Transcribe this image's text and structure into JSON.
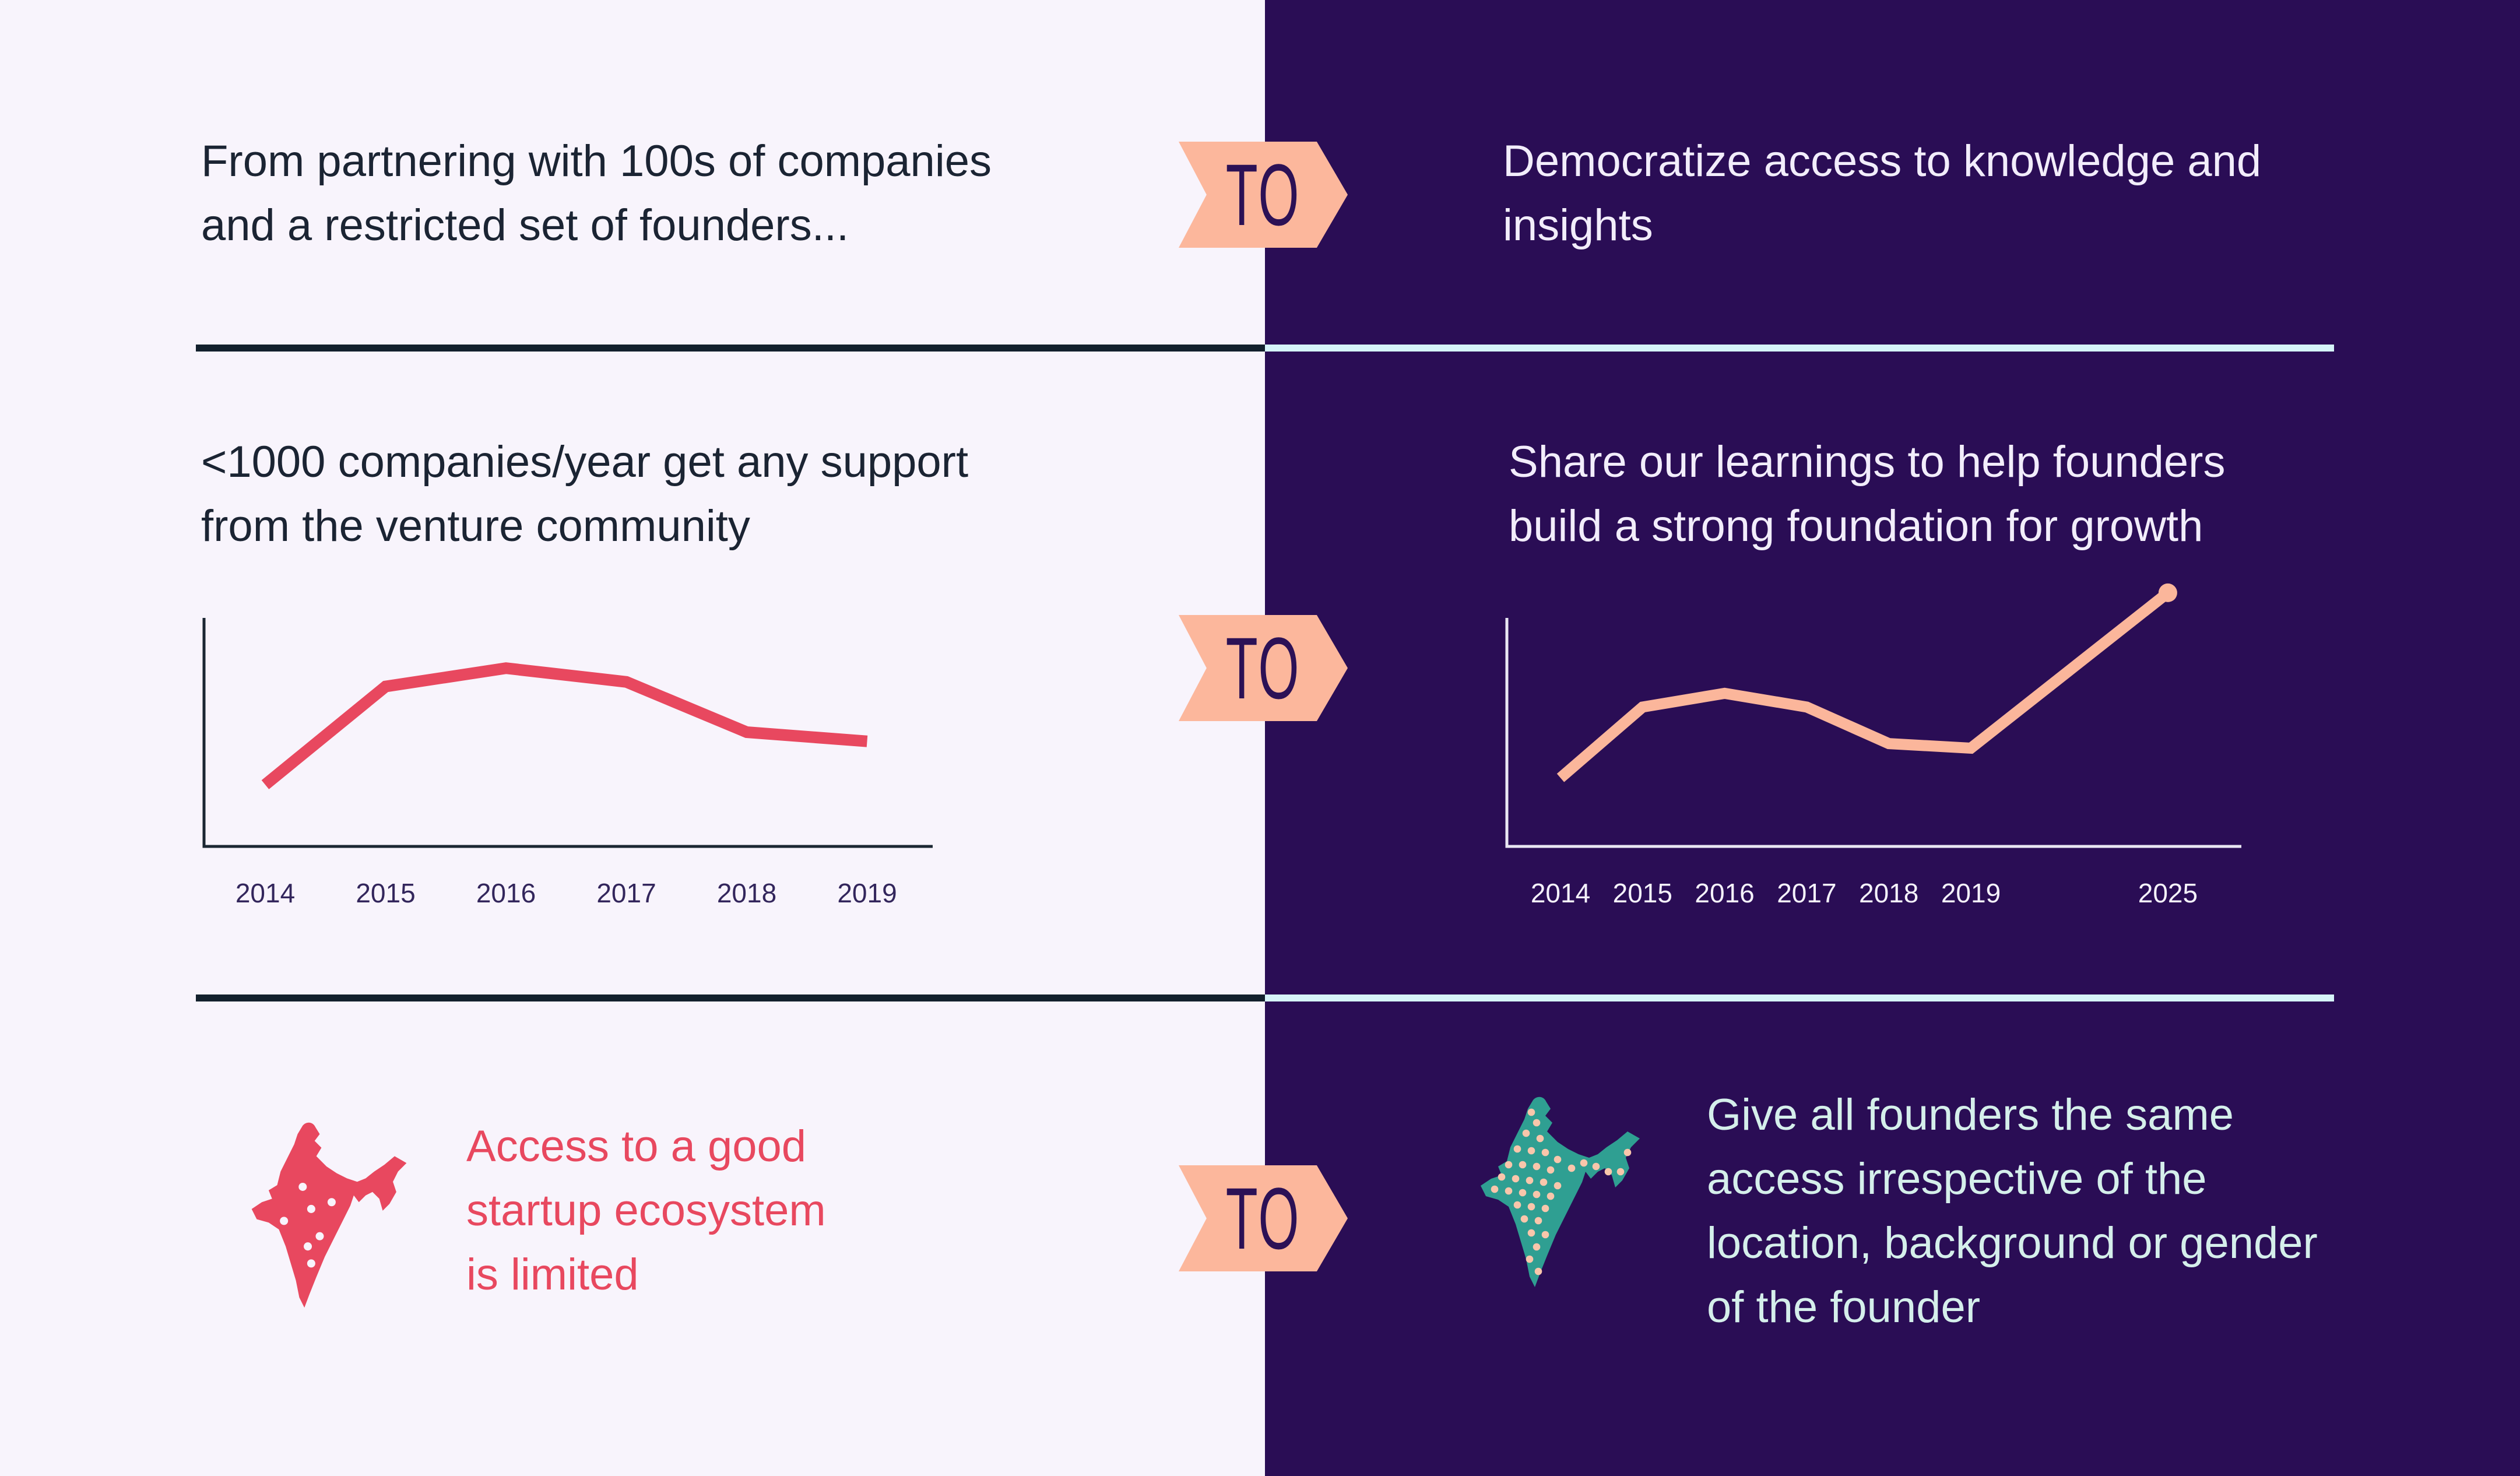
{
  "colors": {
    "left_background": "#f8f4fc",
    "right_background": "#2a0d55",
    "badge_peach": "#fcb79c",
    "badge_text": "#2c1156",
    "crimson": "#e8485f",
    "teal": "#2f9f92",
    "dark_text": "#1b2433",
    "white_text": "#f2edfb",
    "mint_text": "#d5efeb",
    "divider_dark": "#13202d",
    "divider_light": "#d6f4f9"
  },
  "rows": [
    {
      "badge": "TO",
      "left": {
        "text": "From partnering with 100s of companies\nand a restricted set of founders..."
      },
      "right": {
        "text": "Democratize access to knowledge and\ninsights"
      }
    },
    {
      "badge": "TO",
      "left": {
        "title": "<1000 companies/year get any support\nfrom the venture community"
      },
      "right": {
        "title": "Share our learnings to help founders\nbuild a strong foundation for growth"
      }
    },
    {
      "badge": "TO",
      "left": {
        "text": "Access to a good\nstartup ecosystem\nis limited"
      },
      "right": {
        "text": "Give all founders the same\naccess irrespective of the\nlocation, background or gender\nof the founder"
      }
    }
  ],
  "chart_data": [
    {
      "type": "line",
      "title": "<1000 companies/year get any support from the venture community",
      "categories": [
        "2014",
        "2015",
        "2016",
        "2017",
        "2018",
        "2019"
      ],
      "values": [
        27,
        70,
        78,
        72,
        50,
        46
      ],
      "xlabel": "",
      "ylabel": "",
      "ylim": [
        0,
        100
      ],
      "grid": false,
      "legend": "none",
      "line_color": "#e8485f",
      "axis_color": "#1c2733",
      "label_color": "#33265c"
    },
    {
      "type": "line",
      "title": "Share our learnings to help founders build a strong foundation for growth",
      "categories": [
        "2014",
        "2015",
        "2016",
        "2017",
        "2018",
        "2019",
        "2025"
      ],
      "values": [
        30,
        61,
        67,
        61,
        45,
        43,
        111
      ],
      "x_slots": [
        0,
        1,
        2,
        3,
        4,
        5,
        7.4
      ],
      "xlabel": "",
      "ylabel": "",
      "ylim": [
        0,
        100
      ],
      "grid": false,
      "legend": "none",
      "end_dot": true,
      "line_color": "#fbb69b",
      "axis_color": "#e9e7f3",
      "label_color": "#f5f2fc"
    }
  ],
  "maps": {
    "left": {
      "name": "india-map-limited-ecosystem",
      "fill": "#e8485f",
      "dot_color": "#f8f4fc",
      "dot_radius": 2.4,
      "dots": [
        [
          34,
          39
        ],
        [
          51,
          48
        ],
        [
          39,
          52
        ],
        [
          23,
          59
        ],
        [
          44,
          68
        ],
        [
          37,
          74
        ],
        [
          39,
          84
        ]
      ]
    },
    "right": {
      "name": "india-map-same-access",
      "fill": "#2f9f92",
      "dot_color": "#f9c6ab",
      "dot_radius": 2.1,
      "dots": [
        [
          33,
          10
        ],
        [
          36,
          16
        ],
        [
          30,
          22
        ],
        [
          38,
          25
        ],
        [
          25,
          31
        ],
        [
          33,
          32
        ],
        [
          41,
          33
        ],
        [
          48,
          37
        ],
        [
          20,
          40
        ],
        [
          28,
          40
        ],
        [
          36,
          41
        ],
        [
          44,
          43
        ],
        [
          56,
          42
        ],
        [
          63,
          39
        ],
        [
          70,
          41
        ],
        [
          77,
          44
        ],
        [
          84,
          44
        ],
        [
          88,
          33
        ],
        [
          16,
          47
        ],
        [
          24,
          48
        ],
        [
          32,
          49
        ],
        [
          40,
          50
        ],
        [
          48,
          52
        ],
        [
          12,
          54
        ],
        [
          20,
          55
        ],
        [
          28,
          56
        ],
        [
          36,
          57
        ],
        [
          44,
          58
        ],
        [
          25,
          63
        ],
        [
          33,
          64
        ],
        [
          41,
          65
        ],
        [
          29,
          71
        ],
        [
          37,
          72
        ],
        [
          33,
          79
        ],
        [
          41,
          80
        ],
        [
          36,
          87
        ],
        [
          32,
          94
        ],
        [
          37,
          101
        ]
      ]
    }
  }
}
